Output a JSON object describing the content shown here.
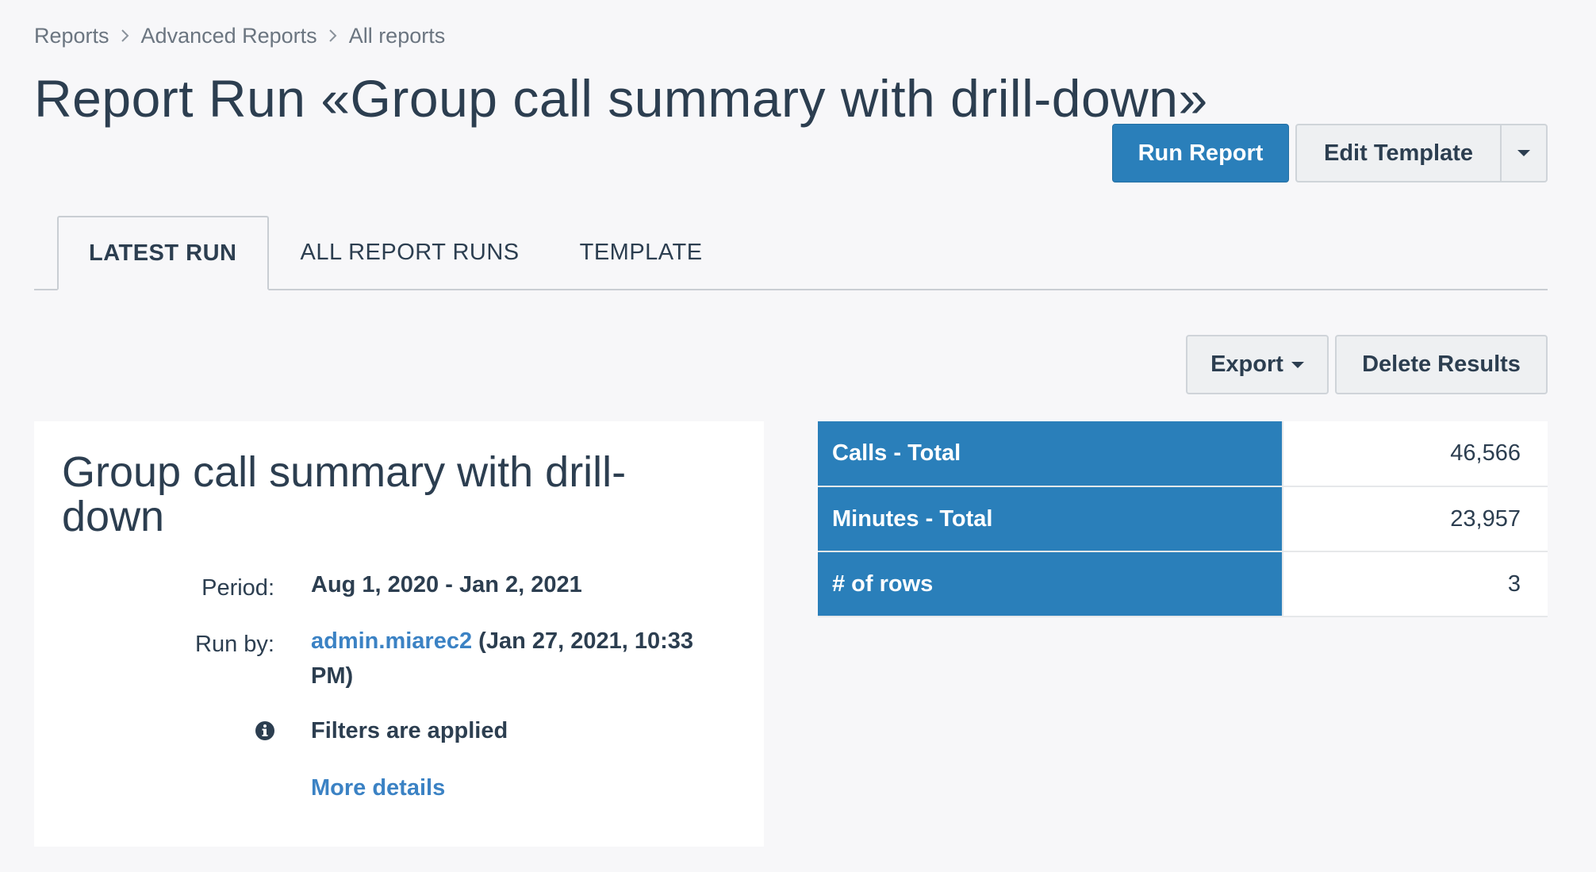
{
  "breadcrumb": [
    "Reports",
    "Advanced Reports",
    "All reports"
  ],
  "title": "Report Run «Group call summary with drill-down»",
  "actions": {
    "run_report": "Run Report",
    "edit_template": "Edit Template"
  },
  "tabs": [
    "LATEST RUN",
    "ALL REPORT RUNS",
    "TEMPLATE"
  ],
  "result_actions": {
    "export": "Export",
    "delete_results": "Delete Results"
  },
  "summary": {
    "report_name": "Group call summary with drill-down",
    "period_label": "Period:",
    "period_value": "Aug 1, 2020 - Jan 2, 2021",
    "run_by_label": "Run by:",
    "run_by_user": "admin.miarec2",
    "run_by_time": "(Jan 27, 2021, 10:33 PM)",
    "filters_text": "Filters are applied",
    "more_details": "More details"
  },
  "stats": [
    {
      "label": "Calls - Total",
      "value": "46,566"
    },
    {
      "label": "Minutes - Total",
      "value": "23,957"
    },
    {
      "label": "# of rows",
      "value": "3"
    }
  ],
  "colors": {
    "primary": "#2a7fba",
    "link": "#3b82c4",
    "text": "#2c3e50",
    "background": "#f7f7f9"
  }
}
